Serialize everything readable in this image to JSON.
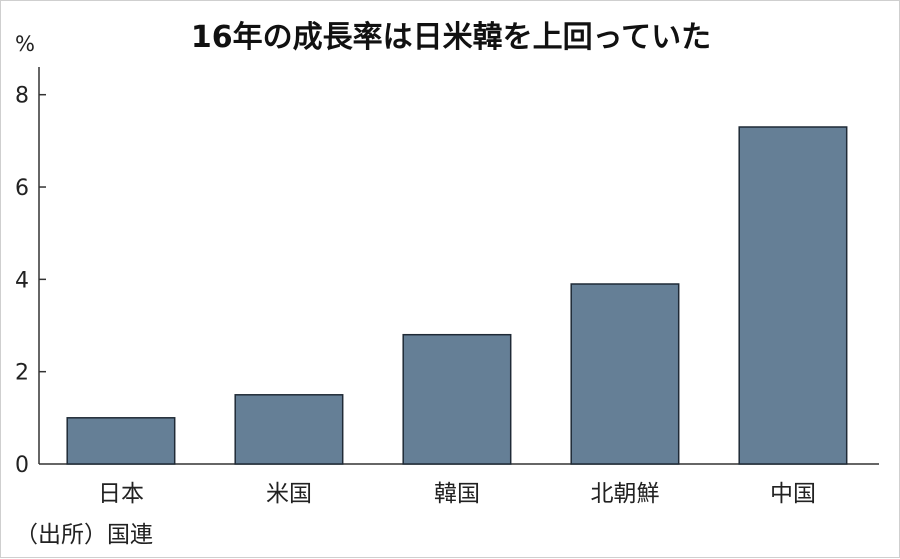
{
  "chart_data": {
    "type": "bar",
    "title": "16年の成長率は日米韓を上回っていた",
    "ylabel": "%",
    "categories": [
      "日本",
      "米国",
      "韓国",
      "北朝鮮",
      "中国"
    ],
    "values": [
      1.0,
      1.5,
      2.8,
      3.9,
      7.3
    ],
    "ylim": [
      0,
      8.6
    ],
    "yticks": [
      0,
      2,
      4,
      6,
      8
    ],
    "grid": false,
    "bar_color": "#657f96",
    "source": "（出所）国連"
  }
}
